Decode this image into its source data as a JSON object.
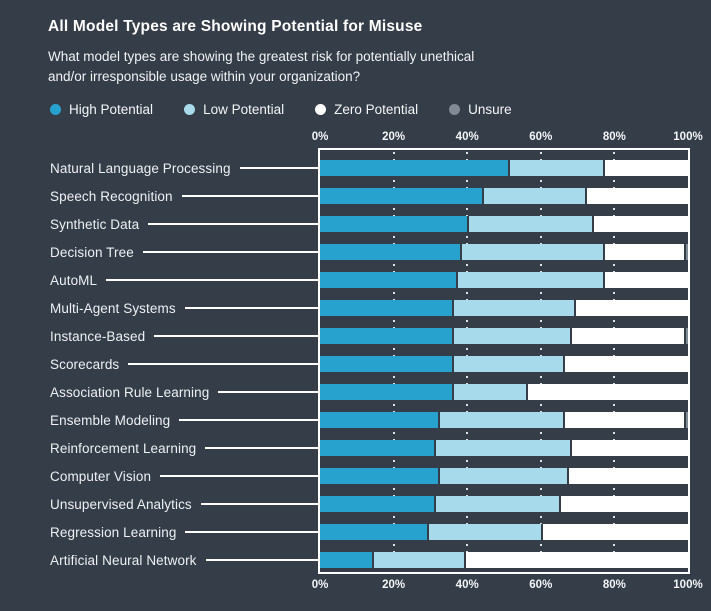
{
  "title": "All Model Types are Showing Potential for Misuse",
  "subtitle": "What model types are showing the greatest risk for potentially unethical and/or irresponsible usage within your organization?",
  "colors": {
    "background": "#343d48",
    "axis_line": "#ffffff",
    "high": "#27a2cf",
    "low": "#a7dbec",
    "zero": "#ffffff",
    "unsure": "#828b95"
  },
  "legend": [
    {
      "label": "High Potential",
      "key": "high"
    },
    {
      "label": "Low Potential",
      "key": "low"
    },
    {
      "label": "Zero Potential",
      "key": "zero"
    },
    {
      "label": "Unsure",
      "key": "unsure"
    }
  ],
  "axis": {
    "ticks": [
      "0%",
      "20%",
      "40%",
      "60%",
      "80%",
      "100%"
    ],
    "position": "top-and-bottom"
  },
  "chart_data": {
    "type": "bar",
    "orientation": "horizontal",
    "stacked": true,
    "x_range": [
      0,
      100
    ],
    "x_tick_labels": [
      "0%",
      "20%",
      "40%",
      "60%",
      "80%",
      "100%"
    ],
    "legend_position": "top",
    "grid": "dotted-vertical-ticks",
    "title": "All Model Types are Showing Potential for Misuse",
    "categories": [
      "Natural Language Processing",
      "Speech Recognition",
      "Synthetic Data",
      "Decision Tree",
      "AutoML",
      "Multi-Agent Systems",
      "Instance-Based",
      "Scorecards",
      "Association Rule Learning",
      "Ensemble Modeling",
      "Reinforcement Learning",
      "Computer Vision",
      "Unsupervised Analytics",
      "Regression Learning",
      "Artificial Neural Network"
    ],
    "series": [
      {
        "name": "High Potential",
        "color": "#27a2cf",
        "values": [
          51,
          44,
          40,
          38,
          37,
          36,
          36,
          36,
          36,
          32,
          31,
          32,
          31,
          29,
          14
        ]
      },
      {
        "name": "Low Potential",
        "color": "#a7dbec",
        "values": [
          26,
          28,
          34,
          39,
          40,
          33,
          32,
          30,
          20,
          34,
          37,
          35,
          34,
          31,
          25
        ]
      },
      {
        "name": "Zero Potential",
        "color": "#ffffff",
        "values": [
          23,
          28,
          26,
          22,
          23,
          31,
          31,
          34,
          44,
          33,
          32,
          33,
          35,
          40,
          61
        ]
      },
      {
        "name": "Unsure",
        "color": "#828b95",
        "values": [
          0,
          0,
          0,
          1,
          0,
          0,
          1,
          0,
          0,
          1,
          0,
          0,
          0,
          0,
          0
        ]
      }
    ]
  }
}
